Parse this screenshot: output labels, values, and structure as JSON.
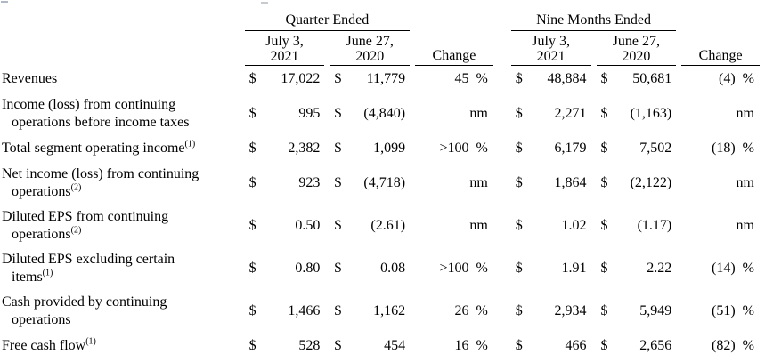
{
  "table": {
    "periods": [
      {
        "group": "Quarter Ended",
        "col1": [
          "July 3,",
          "2021"
        ],
        "col2": [
          "June 27,",
          "2020"
        ],
        "change": "Change"
      },
      {
        "group": "Nine Months Ended",
        "col1": [
          "July 3,",
          "2021"
        ],
        "col2": [
          "June 27,",
          "2020"
        ],
        "change": "Change"
      }
    ],
    "rows": [
      {
        "label": [
          "Revenues"
        ],
        "sup": "",
        "cells": [
          {
            "cur": "$",
            "val": "17,022"
          },
          {
            "cur": "$",
            "val": "11,779"
          },
          {
            "chg": "45 %"
          },
          {
            "cur": "$",
            "val": "48,884"
          },
          {
            "cur": "$",
            "val": "50,681"
          },
          {
            "chg": "(4) %"
          }
        ]
      },
      {
        "label": [
          "Income (loss) from continuing",
          "operations before income taxes"
        ],
        "sup": "",
        "cells": [
          {
            "cur": "$",
            "val": "995"
          },
          {
            "cur": "$",
            "val": "(4,840)"
          },
          {
            "chg": "nm"
          },
          {
            "cur": "$",
            "val": "2,271"
          },
          {
            "cur": "$",
            "val": "(1,163)"
          },
          {
            "chg": "nm"
          }
        ]
      },
      {
        "label": [
          "Total segment operating income"
        ],
        "sup": "(1)",
        "cells": [
          {
            "cur": "$",
            "val": "2,382"
          },
          {
            "cur": "$",
            "val": "1,099"
          },
          {
            "chg": ">100 %"
          },
          {
            "cur": "$",
            "val": "6,179"
          },
          {
            "cur": "$",
            "val": "7,502"
          },
          {
            "chg": "(18) %"
          }
        ]
      },
      {
        "label": [
          "Net income (loss) from continuing",
          "operations"
        ],
        "sup": "(2)",
        "cells": [
          {
            "cur": "$",
            "val": "923"
          },
          {
            "cur": "$",
            "val": "(4,718)"
          },
          {
            "chg": "nm"
          },
          {
            "cur": "$",
            "val": "1,864"
          },
          {
            "cur": "$",
            "val": "(2,122)"
          },
          {
            "chg": "nm"
          }
        ]
      },
      {
        "label": [
          "Diluted EPS from continuing",
          "operations"
        ],
        "sup": "(2)",
        "cells": [
          {
            "cur": "$",
            "val": "0.50"
          },
          {
            "cur": "$",
            "val": "(2.61)"
          },
          {
            "chg": "nm"
          },
          {
            "cur": "$",
            "val": "1.02"
          },
          {
            "cur": "$",
            "val": "(1.17)"
          },
          {
            "chg": "nm"
          }
        ]
      },
      {
        "label": [
          "Diluted EPS excluding certain",
          "items"
        ],
        "sup": "(1)",
        "cells": [
          {
            "cur": "$",
            "val": "0.80"
          },
          {
            "cur": "$",
            "val": "0.08"
          },
          {
            "chg": ">100 %"
          },
          {
            "cur": "$",
            "val": "1.91"
          },
          {
            "cur": "$",
            "val": "2.22"
          },
          {
            "chg": "(14) %"
          }
        ]
      },
      {
        "label": [
          "Cash provided by continuing",
          "operations"
        ],
        "sup": "",
        "cells": [
          {
            "cur": "$",
            "val": "1,466"
          },
          {
            "cur": "$",
            "val": "1,162"
          },
          {
            "chg": "26 %"
          },
          {
            "cur": "$",
            "val": "2,934"
          },
          {
            "cur": "$",
            "val": "5,949"
          },
          {
            "chg": "(51) %"
          }
        ]
      },
      {
        "label": [
          "Free cash flow"
        ],
        "sup": "(1)",
        "cells": [
          {
            "cur": "$",
            "val": "528"
          },
          {
            "cur": "$",
            "val": "454"
          },
          {
            "chg": "16 %"
          },
          {
            "cur": "$",
            "val": "466"
          },
          {
            "cur": "$",
            "val": "2,656"
          },
          {
            "chg": "(82) %"
          }
        ]
      }
    ]
  }
}
